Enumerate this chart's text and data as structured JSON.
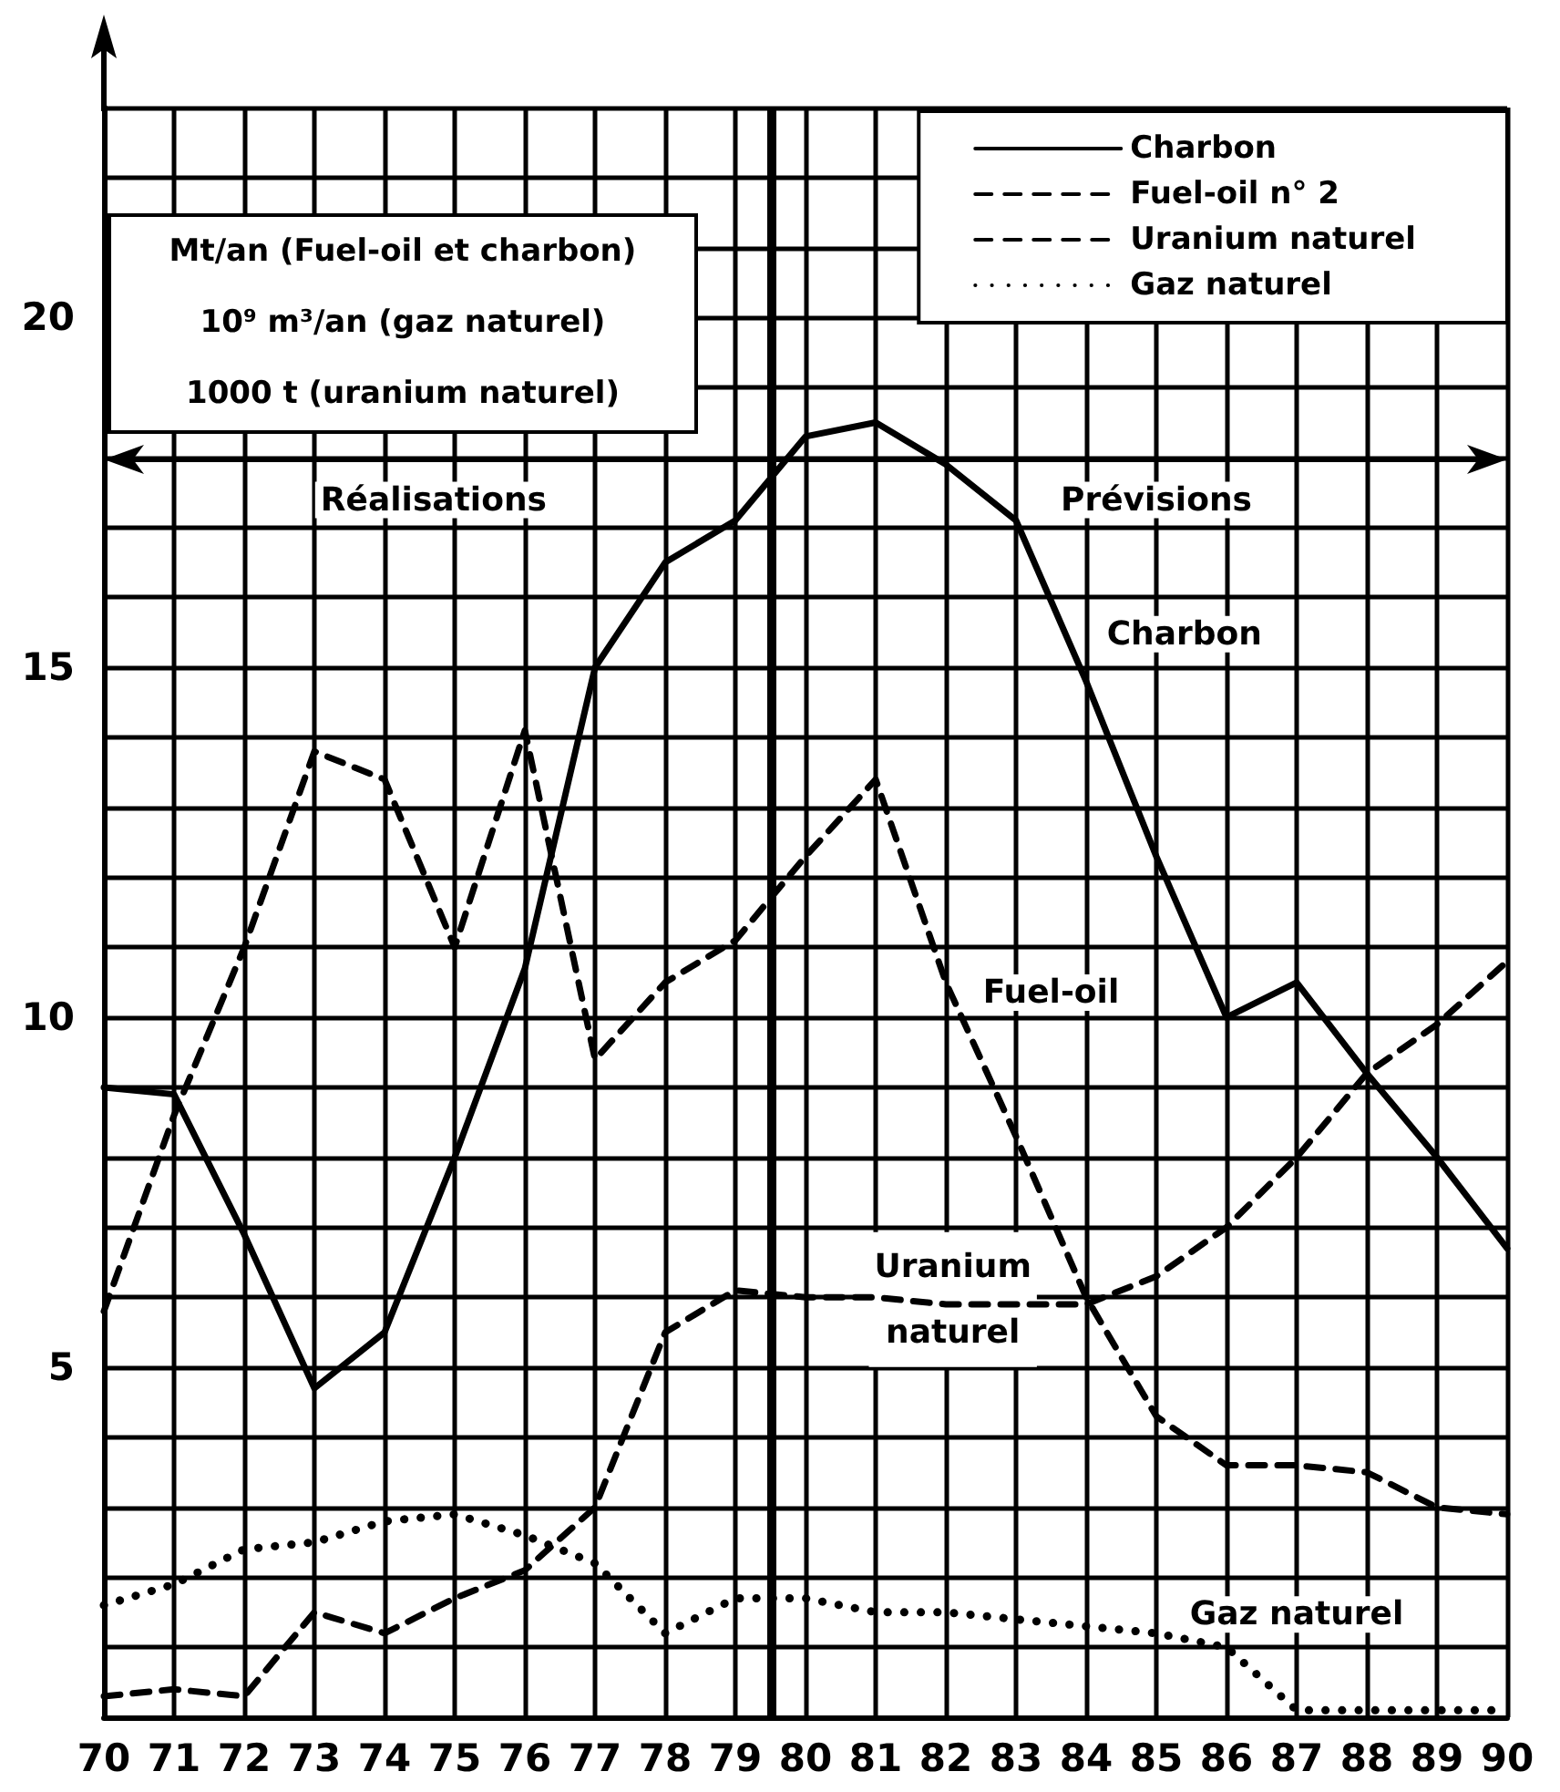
{
  "chart_data": {
    "type": "line",
    "x": [
      70,
      71,
      72,
      73,
      74,
      75,
      76,
      77,
      78,
      79,
      80,
      81,
      82,
      83,
      84,
      85,
      86,
      87,
      88,
      89,
      90
    ],
    "series": [
      {
        "name": "Charbon",
        "color": "#000000",
        "line_style": "solid",
        "values": [
          9.0,
          8.9,
          6.9,
          4.7,
          5.5,
          8.0,
          10.7,
          15.0,
          16.5,
          17.1,
          18.3,
          18.5,
          17.9,
          17.1,
          14.8,
          12.3,
          10.0,
          10.5,
          9.2,
          8.0,
          6.7
        ]
      },
      {
        "name": "Fuel-oil n° 2",
        "color": "#000000",
        "line_style": "dashed",
        "values": [
          5.8,
          8.6,
          11.0,
          13.8,
          13.4,
          11.0,
          14.1,
          9.4,
          10.5,
          11.1,
          12.3,
          13.4,
          10.5,
          8.3,
          6.0,
          4.3,
          3.6,
          3.6,
          3.5,
          3.0,
          2.9
        ]
      },
      {
        "name": "Uranium naturel",
        "color": "#000000",
        "line_style": "dashed",
        "values": [
          0.3,
          0.4,
          0.3,
          1.5,
          1.2,
          1.7,
          2.1,
          3.0,
          5.5,
          6.1,
          6.0,
          6.0,
          5.9,
          5.9,
          5.9,
          6.3,
          7.0,
          8.0,
          9.2,
          9.9,
          10.8
        ]
      },
      {
        "name": "Gaz naturel",
        "color": "#000000",
        "line_style": "dotted",
        "values": [
          1.6,
          1.9,
          2.4,
          2.5,
          2.8,
          2.9,
          2.6,
          2.2,
          1.2,
          1.7,
          1.7,
          1.5,
          1.5,
          1.4,
          1.3,
          1.2,
          1.0,
          0.1,
          0.1,
          0.1,
          0.1
        ]
      }
    ],
    "xlim": [
      70,
      90
    ],
    "xticks": [
      70,
      71,
      72,
      73,
      74,
      75,
      76,
      77,
      78,
      79,
      80,
      81,
      82,
      83,
      84,
      85,
      86,
      87,
      88,
      89,
      90
    ],
    "ylim": [
      0,
      23
    ],
    "yticks": [
      {
        "value": 0,
        "label": null
      },
      {
        "value": 1,
        "label": null
      },
      {
        "value": 2,
        "label": null
      },
      {
        "value": 3,
        "label": null
      },
      {
        "value": 4,
        "label": null
      },
      5,
      {
        "value": 6,
        "label": null
      },
      {
        "value": 7,
        "label": null
      },
      {
        "value": 8,
        "label": null
      },
      {
        "value": 9,
        "label": null
      },
      10,
      {
        "value": 11,
        "label": null
      },
      {
        "value": 12,
        "label": null
      },
      {
        "value": 13,
        "label": null
      },
      {
        "value": 14,
        "label": null
      },
      15,
      {
        "value": 16,
        "label": null
      },
      {
        "value": 17,
        "label": null
      },
      {
        "value": 18,
        "label": null
      },
      {
        "value": 19,
        "label": null
      },
      20,
      {
        "value": 21,
        "label": null
      },
      {
        "value": 22,
        "label": null
      },
      {
        "value": 23,
        "label": null
      }
    ],
    "grid": true,
    "legend": "top right",
    "marker": "none",
    "ref_lines": [
      {
        "axis": "x",
        "value": 79.5
      },
      {
        "axis": "y",
        "value": 18
      }
    ],
    "annotations": [
      "Mt/an (Fuel-oil et charbon)",
      "10⁹ m³/an (gaz naturel)",
      "1000 t (uranium naturel)",
      "Réalisations",
      "Prévisions",
      "Charbon",
      "Fuel-oil",
      "Uranium\nnaturel",
      "Gaz naturel"
    ]
  }
}
